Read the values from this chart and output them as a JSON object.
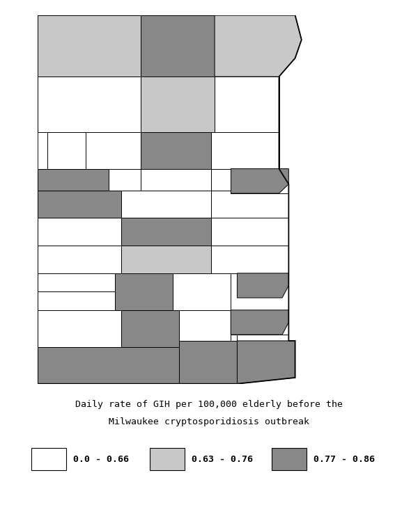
{
  "title_line1": "Daily rate of GIH per 100,000 elderly before the",
  "title_line2": "Milwaukee cryptosporidiosis outbreak",
  "legend": [
    {
      "label": "0.0 - 0.66",
      "color": "#ffffff"
    },
    {
      "label": "0.63 - 0.76",
      "color": "#c8c8c8"
    },
    {
      "label": "0.77 - 0.86",
      "color": "#888888"
    }
  ],
  "bg_color": "#ffffff",
  "WHITE": "#ffffff",
  "LIGHT": "#c8c8c8",
  "DARK": "#888888",
  "fig_width": 6.0,
  "fig_height": 7.26,
  "font_family": "monospace",
  "title_fontsize": 9.5,
  "legend_fontsize": 9.5
}
